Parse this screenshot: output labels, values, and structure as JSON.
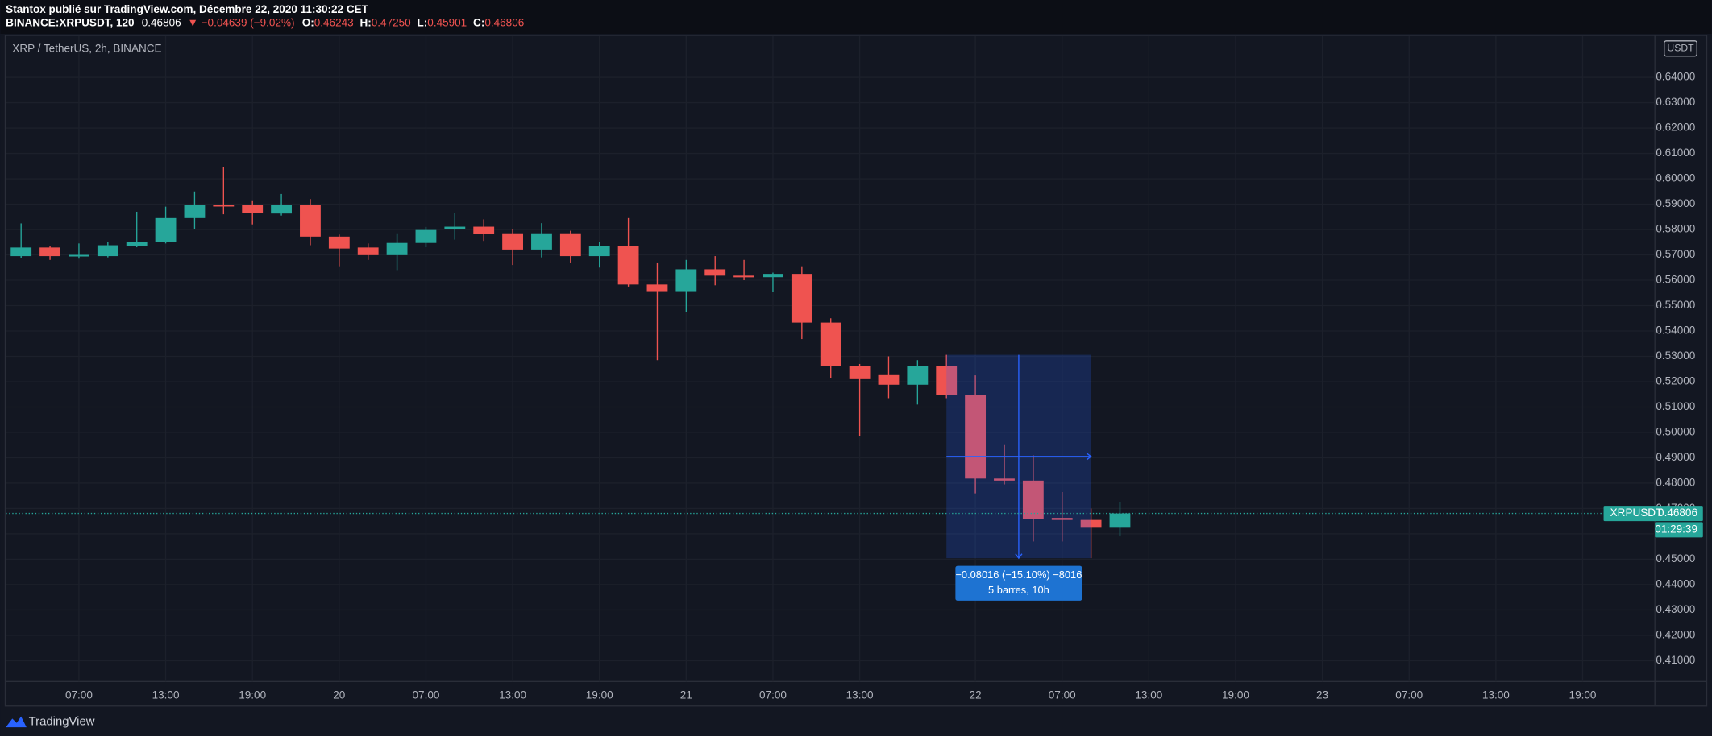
{
  "header": {
    "title": "Stantox publié sur TradingView.com, Décembre 22, 2020 11:30:22 CET",
    "symbol": "BINANCE:XRPUSDT, 120",
    "change": "▼ −0.04639 (−9.02%)",
    "ohlc_labels": [
      "O:",
      "H:",
      "L:",
      "C:"
    ],
    "ohlc_values": [
      "0.46243",
      "0.47250",
      "0.45901",
      "0.46806"
    ]
  },
  "chart_data": {
    "type": "candlestick",
    "title": "XRP / TetherUS, 2h, BINANCE",
    "x": [
      0,
      1,
      2,
      3,
      4,
      5,
      6,
      7,
      8,
      9,
      10,
      11,
      12,
      13,
      14,
      15,
      16,
      17,
      18,
      19,
      20,
      21,
      22,
      23,
      24,
      25,
      26,
      27,
      28,
      29,
      30,
      31,
      32,
      33,
      34,
      35,
      36,
      37,
      38
    ],
    "open": [
      0.5695,
      0.5729,
      0.5695,
      0.5695,
      0.5735,
      0.5751,
      0.5845,
      0.5897,
      0.5897,
      0.5863,
      0.5897,
      0.5772,
      0.5729,
      0.5699,
      0.5747,
      0.58,
      0.5811,
      0.5785,
      0.5721,
      0.5785,
      0.5695,
      0.5734,
      0.5583,
      0.5557,
      0.5643,
      0.5618,
      0.5612,
      0.5625,
      0.5433,
      0.5261,
      0.5226,
      0.5188,
      0.5261,
      0.5149,
      0.4818,
      0.481,
      0.4663,
      0.4655,
      0.46243
    ],
    "high": [
      0.5824,
      0.5735,
      0.5745,
      0.575,
      0.587,
      0.589,
      0.595,
      0.6045,
      0.5915,
      0.594,
      0.592,
      0.578,
      0.5745,
      0.5785,
      0.581,
      0.5865,
      0.584,
      0.58,
      0.5825,
      0.5795,
      0.575,
      0.5845,
      0.567,
      0.568,
      0.5695,
      0.568,
      0.563,
      0.5655,
      0.545,
      0.527,
      0.53,
      0.5285,
      0.5306,
      0.5225,
      0.495,
      0.491,
      0.4765,
      0.47,
      0.4725
    ],
    "low": [
      0.5686,
      0.568,
      0.5685,
      0.569,
      0.573,
      0.5745,
      0.58,
      0.586,
      0.582,
      0.5855,
      0.5738,
      0.5655,
      0.568,
      0.564,
      0.573,
      0.576,
      0.5755,
      0.566,
      0.569,
      0.567,
      0.565,
      0.5575,
      0.5285,
      0.5475,
      0.558,
      0.56,
      0.5555,
      0.5368,
      0.5215,
      0.4985,
      0.5135,
      0.511,
      0.5135,
      0.476,
      0.4795,
      0.457,
      0.457,
      0.45044,
      0.45901
    ],
    "close": [
      0.5729,
      0.5695,
      0.57,
      0.5738,
      0.5751,
      0.5845,
      0.5897,
      0.5893,
      0.5865,
      0.5897,
      0.5772,
      0.5725,
      0.5699,
      0.5747,
      0.5798,
      0.5811,
      0.5781,
      0.5721,
      0.5785,
      0.5695,
      0.5734,
      0.5583,
      0.5557,
      0.5643,
      0.5618,
      0.5612,
      0.5625,
      0.5433,
      0.5261,
      0.521,
      0.5188,
      0.5261,
      0.5149,
      0.4818,
      0.481,
      0.4659,
      0.4655,
      0.46243,
      0.46806
    ],
    "up_color": "#26a69a",
    "down_color": "#ef5350",
    "ylim": [
      0.4018,
      0.6563
    ],
    "yticks": [
      {
        "value": 0.41,
        "label": "0.41000"
      },
      {
        "value": 0.42,
        "label": "0.42000"
      },
      {
        "value": 0.43,
        "label": "0.43000"
      },
      {
        "value": 0.44,
        "label": "0.44000"
      },
      {
        "value": 0.45,
        "label": "0.45000"
      },
      {
        "value": 0.46,
        "label": "0.46000"
      },
      {
        "value": 0.47,
        "label": "0.47000"
      },
      {
        "value": 0.48,
        "label": "0.48000"
      },
      {
        "value": 0.49,
        "label": "0.49000"
      },
      {
        "value": 0.5,
        "label": "0.50000"
      },
      {
        "value": 0.51,
        "label": "0.51000"
      },
      {
        "value": 0.52,
        "label": "0.52000"
      },
      {
        "value": 0.53,
        "label": "0.53000"
      },
      {
        "value": 0.54,
        "label": "0.54000"
      },
      {
        "value": 0.55,
        "label": "0.55000"
      },
      {
        "value": 0.56,
        "label": "0.56000"
      },
      {
        "value": 0.57,
        "label": "0.57000"
      },
      {
        "value": 0.58,
        "label": "0.58000"
      },
      {
        "value": 0.59,
        "label": "0.59000"
      },
      {
        "value": 0.6,
        "label": "0.60000"
      },
      {
        "value": 0.61,
        "label": "0.61000"
      },
      {
        "value": 0.62,
        "label": "0.62000"
      },
      {
        "value": 0.63,
        "label": "0.63000"
      },
      {
        "value": 0.64,
        "label": "0.64000"
      }
    ],
    "xlim": [
      -0.53,
      56.5
    ],
    "xticks": [
      {
        "value": 2,
        "label": "07:00"
      },
      {
        "value": 5,
        "label": "13:00"
      },
      {
        "value": 8,
        "label": "19:00"
      },
      {
        "value": 11,
        "label": "20"
      },
      {
        "value": 14,
        "label": "07:00"
      },
      {
        "value": 17,
        "label": "13:00"
      },
      {
        "value": 20,
        "label": "19:00"
      },
      {
        "value": 23,
        "label": "21"
      },
      {
        "value": 26,
        "label": "07:00"
      },
      {
        "value": 29,
        "label": "13:00"
      },
      {
        "value": 33,
        "label": "22"
      },
      {
        "value": 36,
        "label": "07:00"
      },
      {
        "value": 39,
        "label": "13:00"
      },
      {
        "value": 42,
        "label": "19:00"
      },
      {
        "value": 45,
        "label": "23"
      },
      {
        "value": 48,
        "label": "07:00"
      },
      {
        "value": 51,
        "label": "13:00"
      },
      {
        "value": 54,
        "label": "19:00"
      }
    ],
    "grid": true,
    "currency": "USDT",
    "symbol_label": "XRPUSDT",
    "countdown": "01:29:39",
    "measure": {
      "label": "−0.08016 (−15.10%) −8016",
      "sub": "5 barres, 10h"
    }
  },
  "footer": {
    "brand": "TradingView"
  }
}
